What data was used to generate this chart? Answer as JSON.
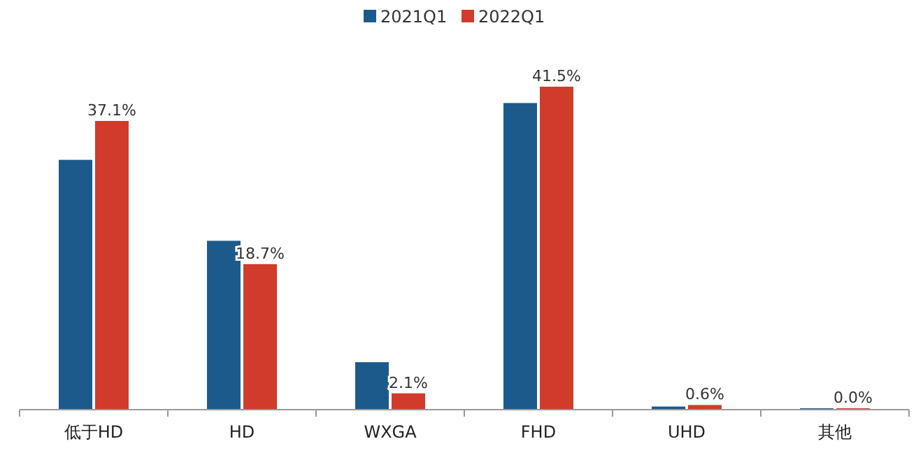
{
  "chart_data": {
    "type": "bar",
    "categories": [
      "低于HD",
      "HD",
      "WXGA",
      "FHD",
      "UHD",
      "其他"
    ],
    "series": [
      {
        "name": "2021Q1",
        "color": "#1d5a8c",
        "values": [
          32.1,
          21.7,
          6.1,
          39.4,
          0.4,
          0.0
        ]
      },
      {
        "name": "2022Q1",
        "color": "#d13b2c",
        "values": [
          37.1,
          18.7,
          2.1,
          41.5,
          0.6,
          0.0
        ],
        "value_labels": [
          "37.1%",
          "18.7%",
          "2.1%",
          "41.5%",
          "0.6%",
          "0.0%"
        ]
      }
    ],
    "legend": "top"
  }
}
